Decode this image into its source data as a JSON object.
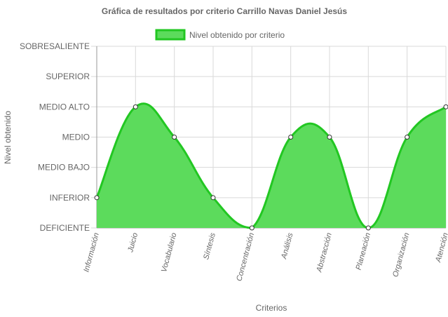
{
  "chart_data": {
    "type": "area",
    "title": "Gráfica de resultados por criterio Carrillo Navas Daniel Jesús",
    "xlabel": "Criterios",
    "ylabel": "Nivel obtenido",
    "categories": [
      "Información",
      "Juicio",
      "Vocabulario",
      "Síntesis",
      "Concentración",
      "Análisis",
      "Abstracción",
      "Planeación",
      "Organización",
      "Atención"
    ],
    "y_levels": [
      "DEFICIENTE",
      "INFERIOR",
      "MEDIO BAJO",
      "MEDIO",
      "MEDIO ALTO",
      "SUPERIOR",
      "SOBRESALIENTE"
    ],
    "ylim": [
      0,
      6
    ],
    "series": [
      {
        "name": "Nivel obtenido por criterio",
        "values": [
          1,
          4,
          3,
          1,
          0,
          3,
          3,
          0,
          3,
          4
        ]
      }
    ],
    "legend_position": "top",
    "grid": true,
    "colors": {
      "fill": "#5cdb5c",
      "line": "#22c722",
      "point_fill": "#ffffff",
      "point_stroke": "#333333",
      "grid": "#d9d9d9",
      "axis": "#999999"
    }
  }
}
